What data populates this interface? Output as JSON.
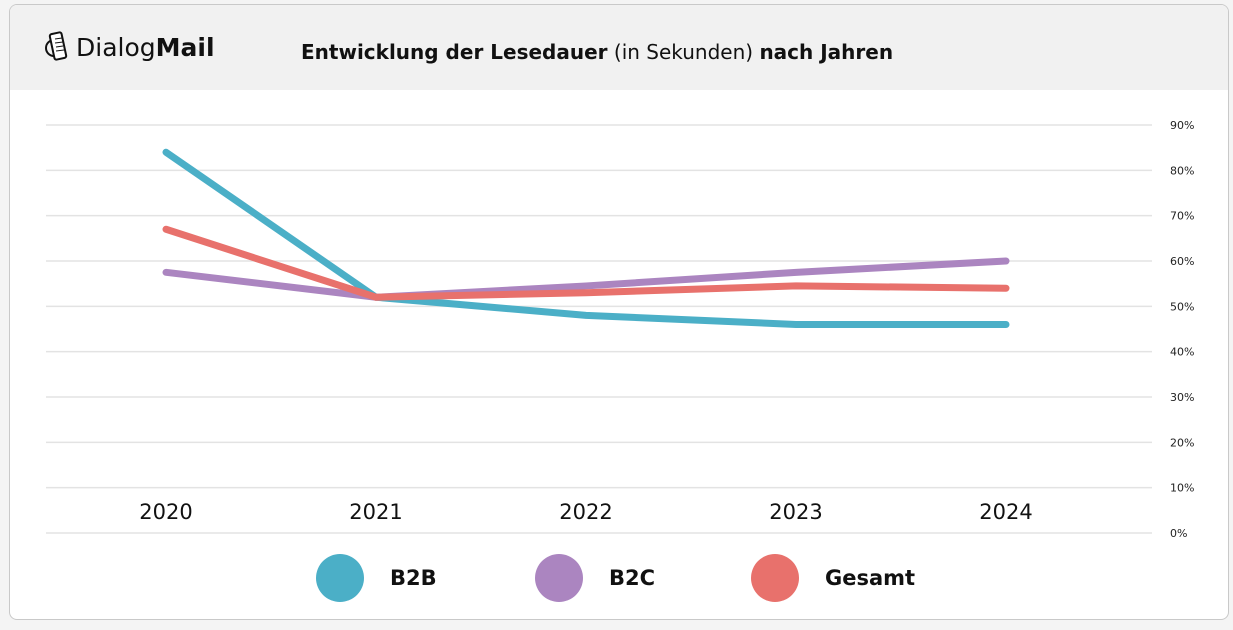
{
  "logo": {
    "text_regular": "Dialog",
    "text_bold": "Mail"
  },
  "title": {
    "part1": "Entwicklung der Lesedauer",
    "part2": " (in Sekunden) ",
    "part3": "nach Jahren"
  },
  "chart_data": {
    "type": "line",
    "title": "Entwicklung der Lesedauer (in Sekunden) nach Jahren",
    "categories": [
      "2020",
      "2021",
      "2022",
      "2023",
      "2024"
    ],
    "y_ticks": [
      "0%",
      "10%",
      "20%",
      "30%",
      "40%",
      "50%",
      "60%",
      "70%",
      "80%",
      "90%"
    ],
    "ylim": [
      0,
      90
    ],
    "y_axis_position": "right",
    "grid": true,
    "legend_position": "bottom",
    "series": [
      {
        "name": "B2B",
        "color": "#4bafc7",
        "values": [
          84,
          52,
          48,
          46,
          46
        ]
      },
      {
        "name": "B2C",
        "color": "#ab85c0",
        "values": [
          57.5,
          52,
          54.5,
          57.5,
          60
        ]
      },
      {
        "name": "Gesamt",
        "color": "#e8716c",
        "values": [
          67,
          52,
          53,
          54.5,
          54
        ]
      }
    ]
  }
}
